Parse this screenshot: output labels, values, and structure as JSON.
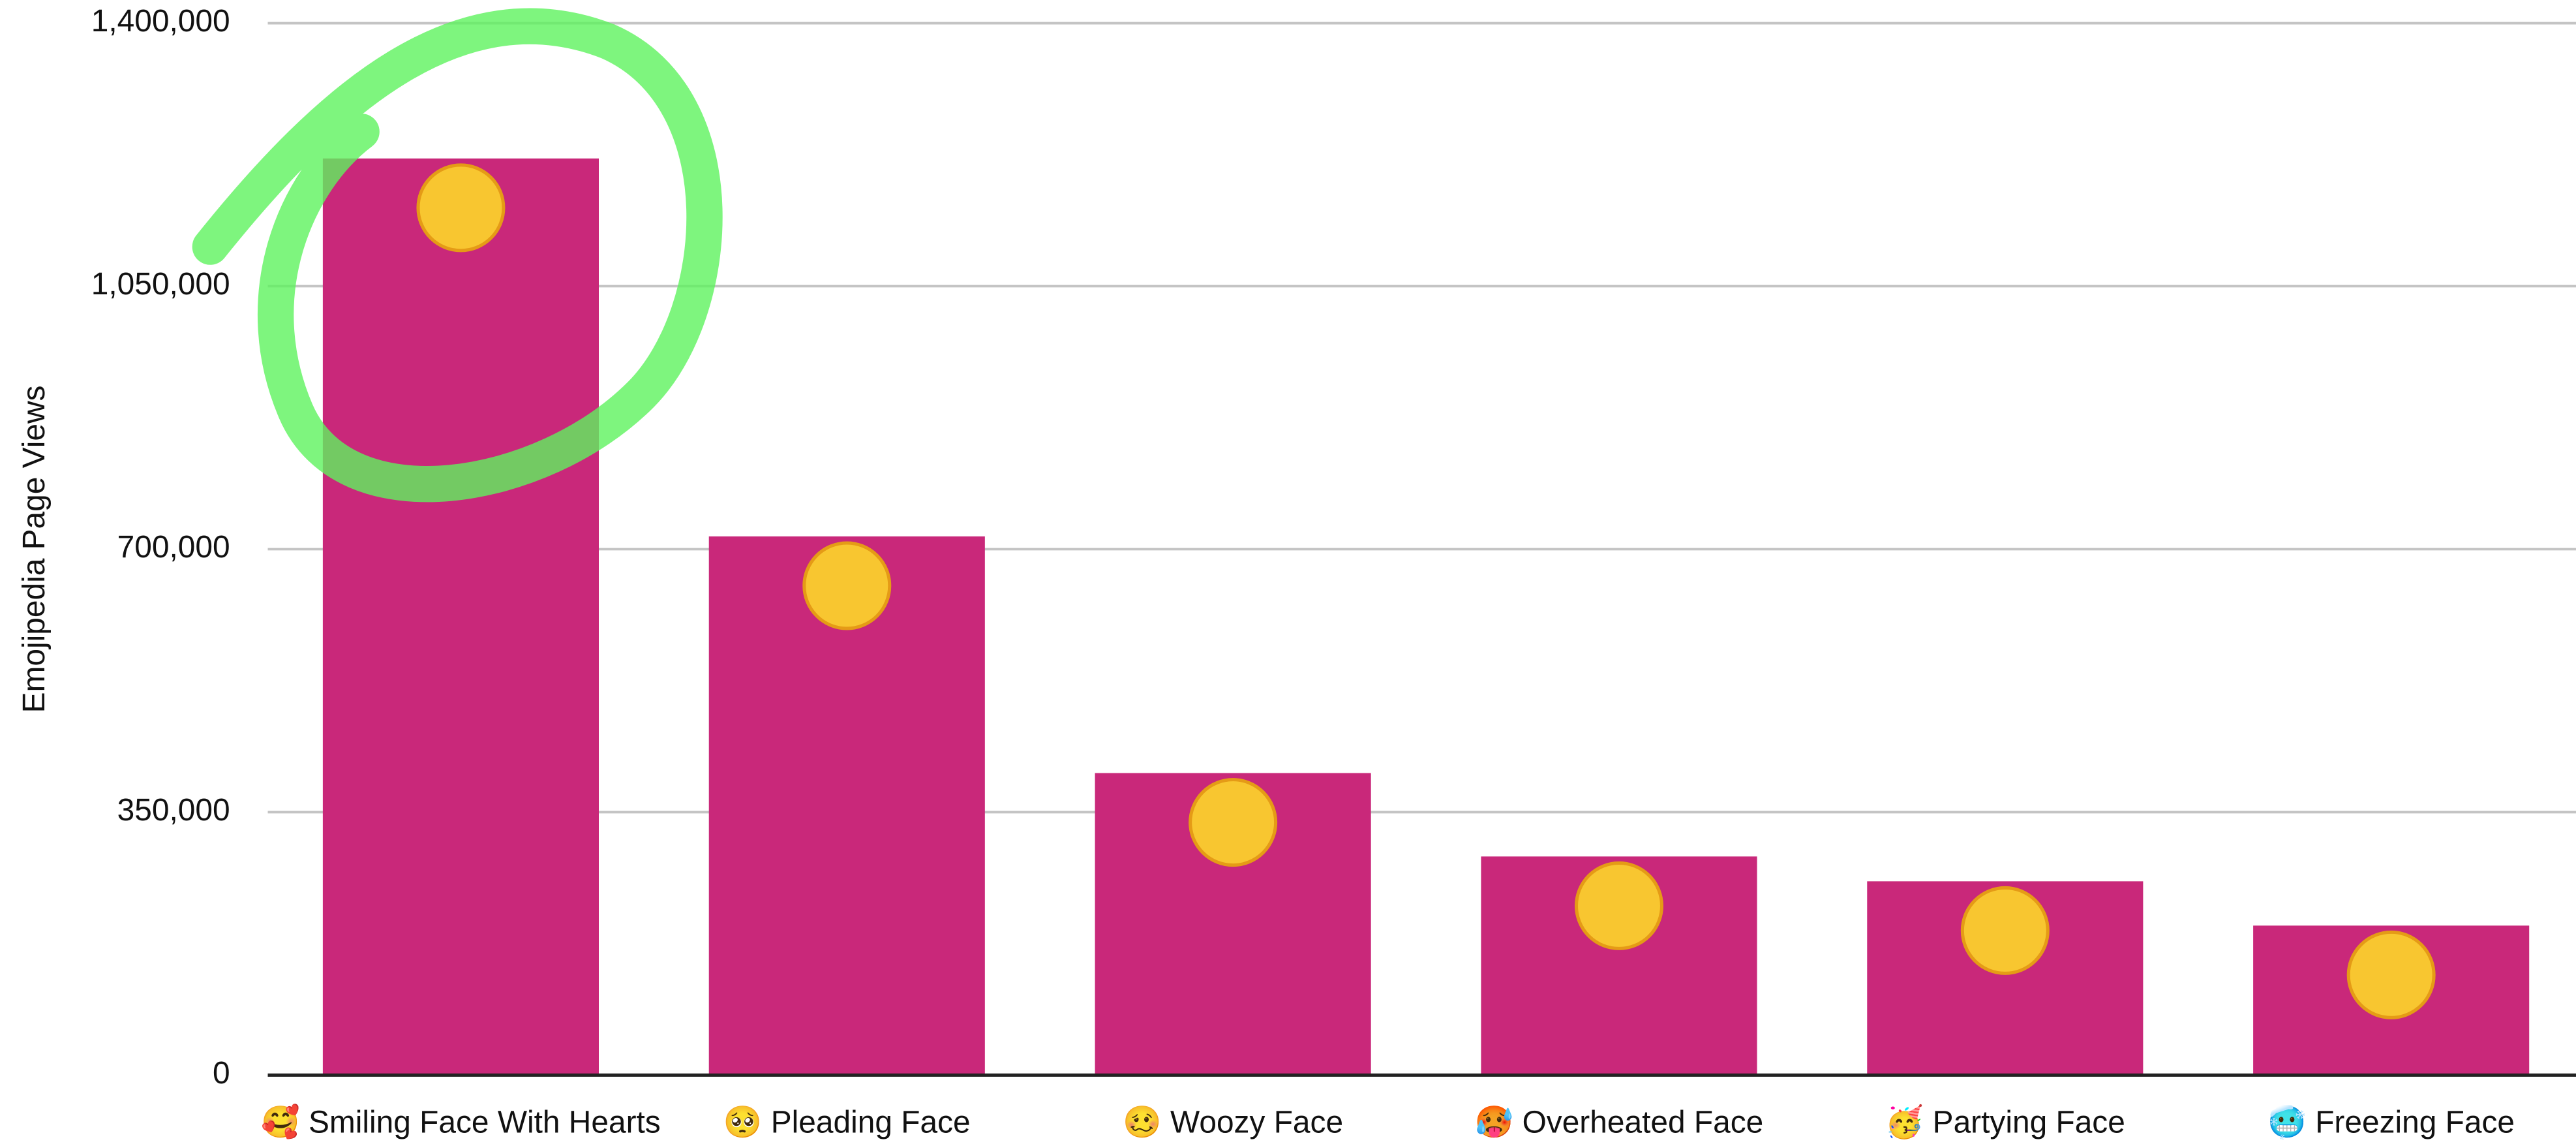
{
  "chart_data": {
    "type": "bar",
    "y_label": "Emojipedia Page Views",
    "categories": [
      "🥰 Smiling Face With Hearts",
      "🥺 Pleading Face",
      "🥴 Woozy Face",
      "🥵 Overheated Face",
      "🥳 Partying Face",
      "🥶 Freezing Face"
    ],
    "values": [
      1220000,
      717000,
      402000,
      291000,
      258000,
      199000
    ],
    "color": "#c9287a",
    "ylim": [
      0,
      1400000
    ],
    "yticks": [
      0,
      {
        "value": 350000,
        "label": "350,000"
      },
      {
        "value": 700000,
        "label": "700,000"
      },
      {
        "value": 1050000,
        "label": "1,050,000"
      },
      {
        "value": 1400000,
        "label": "1,400,000"
      }
    ],
    "grid": true
  }
}
